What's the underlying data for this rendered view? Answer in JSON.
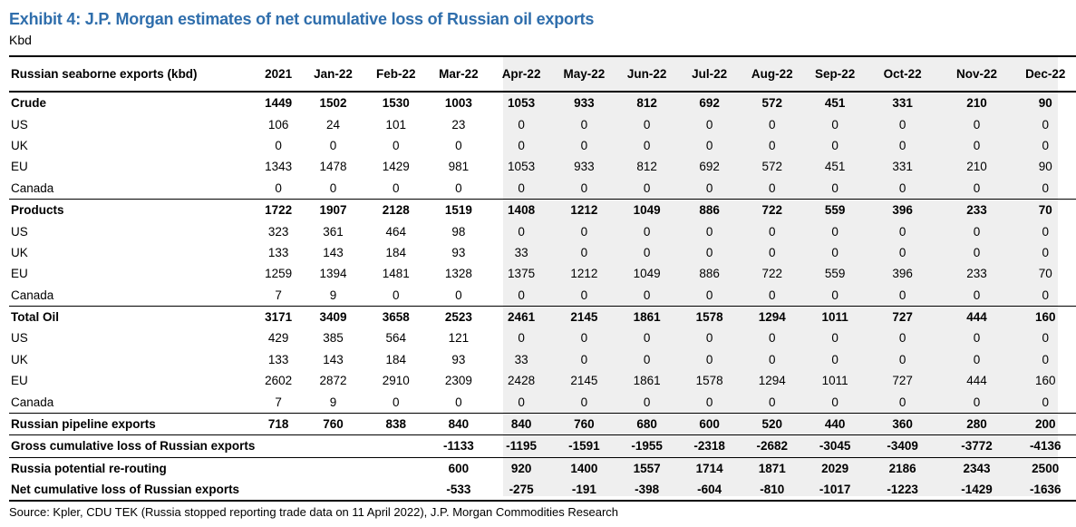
{
  "title": "Exhibit 4: J.P. Morgan estimates of net cumulative loss of Russian oil exports",
  "unit": "Kbd",
  "table": {
    "header_label": "Russian seaborne exports (kbd)",
    "columns": [
      "2021",
      "Jan-22",
      "Feb-22",
      "Mar-22",
      "Apr-22",
      "May-22",
      "Jun-22",
      "Jul-22",
      "Aug-22",
      "Sep-22",
      "Oct-22",
      "Nov-22",
      "Dec-22"
    ],
    "rows": [
      {
        "label": "Crude",
        "bold": true,
        "values": [
          "1449",
          "1502",
          "1530",
          "1003",
          "1053",
          "933",
          "812",
          "692",
          "572",
          "451",
          "331",
          "210",
          "90"
        ]
      },
      {
        "label": "US",
        "values": [
          "106",
          "24",
          "101",
          "23",
          "0",
          "0",
          "0",
          "0",
          "0",
          "0",
          "0",
          "0",
          "0"
        ]
      },
      {
        "label": "UK",
        "values": [
          "0",
          "0",
          "0",
          "0",
          "0",
          "0",
          "0",
          "0",
          "0",
          "0",
          "0",
          "0",
          "0"
        ]
      },
      {
        "label": "EU",
        "values": [
          "1343",
          "1478",
          "1429",
          "981",
          "1053",
          "933",
          "812",
          "692",
          "572",
          "451",
          "331",
          "210",
          "90"
        ]
      },
      {
        "label": "Canada",
        "values": [
          "0",
          "0",
          "0",
          "0",
          "0",
          "0",
          "0",
          "0",
          "0",
          "0",
          "0",
          "0",
          "0"
        ]
      },
      {
        "label": "Products",
        "bold": true,
        "topline": true,
        "values": [
          "1722",
          "1907",
          "2128",
          "1519",
          "1408",
          "1212",
          "1049",
          "886",
          "722",
          "559",
          "396",
          "233",
          "70"
        ]
      },
      {
        "label": "US",
        "values": [
          "323",
          "361",
          "464",
          "98",
          "0",
          "0",
          "0",
          "0",
          "0",
          "0",
          "0",
          "0",
          "0"
        ]
      },
      {
        "label": "UK",
        "values": [
          "133",
          "143",
          "184",
          "93",
          "33",
          "0",
          "0",
          "0",
          "0",
          "0",
          "0",
          "0",
          "0"
        ]
      },
      {
        "label": "EU",
        "values": [
          "1259",
          "1394",
          "1481",
          "1328",
          "1375",
          "1212",
          "1049",
          "886",
          "722",
          "559",
          "396",
          "233",
          "70"
        ]
      },
      {
        "label": "Canada",
        "values": [
          "7",
          "9",
          "0",
          "0",
          "0",
          "0",
          "0",
          "0",
          "0",
          "0",
          "0",
          "0",
          "0"
        ]
      },
      {
        "label": "Total Oil",
        "bold": true,
        "topline": true,
        "values": [
          "3171",
          "3409",
          "3658",
          "2523",
          "2461",
          "2145",
          "1861",
          "1578",
          "1294",
          "1011",
          "727",
          "444",
          "160"
        ]
      },
      {
        "label": "US",
        "values": [
          "429",
          "385",
          "564",
          "121",
          "0",
          "0",
          "0",
          "0",
          "0",
          "0",
          "0",
          "0",
          "0"
        ]
      },
      {
        "label": "UK",
        "values": [
          "133",
          "143",
          "184",
          "93",
          "33",
          "0",
          "0",
          "0",
          "0",
          "0",
          "0",
          "0",
          "0"
        ]
      },
      {
        "label": "EU",
        "values": [
          "2602",
          "2872",
          "2910",
          "2309",
          "2428",
          "2145",
          "1861",
          "1578",
          "1294",
          "1011",
          "727",
          "444",
          "160"
        ]
      },
      {
        "label": "Canada",
        "values": [
          "7",
          "9",
          "0",
          "0",
          "0",
          "0",
          "0",
          "0",
          "0",
          "0",
          "0",
          "0",
          "0"
        ]
      },
      {
        "label": "Russian pipeline exports",
        "bold": true,
        "topline": true,
        "values": [
          "718",
          "760",
          "838",
          "840",
          "840",
          "760",
          "680",
          "600",
          "520",
          "440",
          "360",
          "280",
          "200"
        ]
      },
      {
        "label": "Gross cumulative loss of Russian exports",
        "bold": true,
        "topline": true,
        "values": [
          "",
          "",
          "",
          "-1133",
          "-1195",
          "-1591",
          "-1955",
          "-2318",
          "-2682",
          "-3045",
          "-3409",
          "-3772",
          "-4136"
        ]
      },
      {
        "label": "Russia potential re-routing",
        "bold": true,
        "topline": true,
        "values": [
          "",
          "",
          "",
          "600",
          "920",
          "1400",
          "1557",
          "1714",
          "1871",
          "2029",
          "2186",
          "2343",
          "2500"
        ]
      },
      {
        "label": "Net cumulative loss of Russian exports",
        "bold": true,
        "last": true,
        "values": [
          "",
          "",
          "",
          "-533",
          "-275",
          "-191",
          "-398",
          "-604",
          "-810",
          "-1017",
          "-1223",
          "-1429",
          "-1636"
        ]
      }
    ]
  },
  "source": "Source: Kpler, CDU TEK (Russia stopped reporting trade data on 11 April 2022), J.P. Morgan Commodities Research",
  "colors": {
    "title": "#2f6eac",
    "shade": "#efefef"
  }
}
